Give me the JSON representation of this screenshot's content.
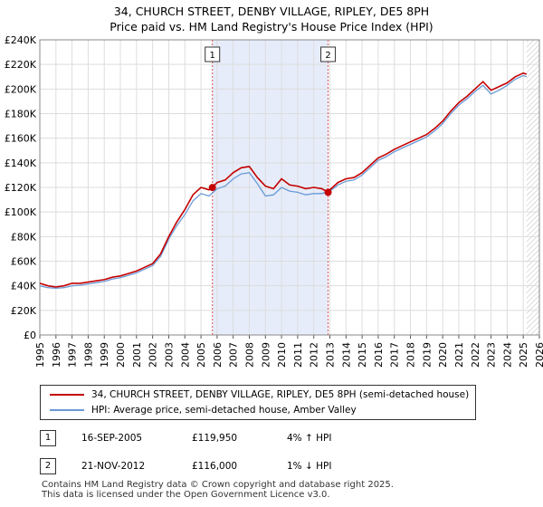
{
  "title": {
    "line1": "34, CHURCH STREET, DENBY VILLAGE, RIPLEY, DE5 8PH",
    "line2": "Price paid vs. HM Land Registry's House Price Index (HPI)"
  },
  "colors": {
    "price_line": "#c40000",
    "hpi_line": "#6a9ad6",
    "shade": "#e6ecf9",
    "grid": "#dddddd",
    "marker_line": "#e05050"
  },
  "chart_data": {
    "type": "line",
    "x_range": [
      1995,
      2026
    ],
    "ylim": [
      0,
      240000
    ],
    "y_ticks": [
      "£0",
      "£20K",
      "£40K",
      "£60K",
      "£80K",
      "£100K",
      "£120K",
      "£140K",
      "£160K",
      "£180K",
      "£200K",
      "£220K",
      "£240K"
    ],
    "x_ticks": [
      "1995",
      "1996",
      "1997",
      "1998",
      "1999",
      "2000",
      "2001",
      "2002",
      "2003",
      "2004",
      "2005",
      "2006",
      "2007",
      "2008",
      "2009",
      "2010",
      "2011",
      "2012",
      "2013",
      "2014",
      "2015",
      "2016",
      "2017",
      "2018",
      "2019",
      "2020",
      "2021",
      "2022",
      "2023",
      "2024",
      "2025",
      "2026"
    ],
    "grid": true,
    "shaded_range": [
      2005.71,
      2012.89
    ],
    "future_hatch_start": 2025.2,
    "series": [
      {
        "name": "34, CHURCH STREET, DENBY VILLAGE, RIPLEY, DE5 8PH (semi-detached house)",
        "x": [
          1995.0,
          1995.5,
          1996.0,
          1996.5,
          1997.0,
          1997.5,
          1998.0,
          1998.5,
          1999.0,
          1999.5,
          2000.0,
          2000.5,
          2001.0,
          2001.5,
          2002.0,
          2002.5,
          2003.0,
          2003.5,
          2004.0,
          2004.5,
          2005.0,
          2005.5,
          2005.71,
          2006.0,
          2006.5,
          2007.0,
          2007.5,
          2008.0,
          2008.5,
          2009.0,
          2009.5,
          2010.0,
          2010.5,
          2011.0,
          2011.5,
          2012.0,
          2012.5,
          2012.89,
          2013.0,
          2013.5,
          2014.0,
          2014.5,
          2015.0,
          2015.5,
          2016.0,
          2016.5,
          2017.0,
          2017.5,
          2018.0,
          2018.5,
          2019.0,
          2019.5,
          2020.0,
          2020.5,
          2021.0,
          2021.5,
          2022.0,
          2022.5,
          2023.0,
          2023.5,
          2024.0,
          2024.5,
          2025.0,
          2025.2
        ],
        "y": [
          42000,
          40000,
          39000,
          40000,
          42000,
          42000,
          43000,
          44000,
          45000,
          47000,
          48000,
          50000,
          52000,
          55000,
          58000,
          66000,
          80000,
          92000,
          102000,
          114000,
          120000,
          118000,
          119950,
          124000,
          126000,
          132000,
          136000,
          137000,
          128000,
          121000,
          119000,
          127000,
          122000,
          121000,
          119000,
          120000,
          119000,
          116000,
          118000,
          124000,
          127000,
          128000,
          132000,
          138000,
          144000,
          147000,
          151000,
          154000,
          157000,
          160000,
          163000,
          168000,
          174000,
          182000,
          189000,
          194000,
          200000,
          206000,
          199000,
          202000,
          205000,
          210000,
          213000,
          212000
        ]
      },
      {
        "name": "HPI: Average price, semi-detached house, Amber Valley",
        "x": [
          1995.0,
          1995.5,
          1996.0,
          1996.5,
          1997.0,
          1997.5,
          1998.0,
          1998.5,
          1999.0,
          1999.5,
          2000.0,
          2000.5,
          2001.0,
          2001.5,
          2002.0,
          2002.5,
          2003.0,
          2003.5,
          2004.0,
          2004.5,
          2005.0,
          2005.5,
          2006.0,
          2006.5,
          2007.0,
          2007.5,
          2008.0,
          2008.5,
          2009.0,
          2009.5,
          2010.0,
          2010.5,
          2011.0,
          2011.5,
          2012.0,
          2012.5,
          2013.0,
          2013.5,
          2014.0,
          2014.5,
          2015.0,
          2015.5,
          2016.0,
          2016.5,
          2017.0,
          2017.5,
          2018.0,
          2018.5,
          2019.0,
          2019.5,
          2020.0,
          2020.5,
          2021.0,
          2021.5,
          2022.0,
          2022.5,
          2023.0,
          2023.5,
          2024.0,
          2024.5,
          2025.0,
          2025.2
        ],
        "y": [
          40000,
          38500,
          38000,
          38500,
          40000,
          40500,
          41500,
          42500,
          43500,
          45500,
          46500,
          48500,
          50500,
          53500,
          56500,
          64000,
          78000,
          89000,
          98000,
          109000,
          115000,
          113000,
          119000,
          121000,
          127000,
          131000,
          132000,
          123000,
          113000,
          114000,
          120000,
          117000,
          116000,
          114000,
          115000,
          115000,
          117000,
          122000,
          125000,
          126000,
          130000,
          136000,
          142000,
          145000,
          149000,
          152000,
          155000,
          158000,
          161000,
          166000,
          172000,
          180000,
          187000,
          192000,
          198000,
          203000,
          196000,
          199000,
          203000,
          208000,
          211000,
          210000
        ]
      }
    ],
    "sales": [
      {
        "label": "1",
        "x": 2005.71,
        "value": 119950
      },
      {
        "label": "2",
        "x": 2012.89,
        "value": 116000
      }
    ]
  },
  "legend": {
    "price_label": "34, CHURCH STREET, DENBY VILLAGE, RIPLEY, DE5 8PH (semi-detached house)",
    "hpi_label": "HPI: Average price, semi-detached house, Amber Valley"
  },
  "annotations": [
    {
      "num": "1",
      "date": "16-SEP-2005",
      "price": "£119,950",
      "hpi": "4% ↑ HPI"
    },
    {
      "num": "2",
      "date": "21-NOV-2012",
      "price": "£116,000",
      "hpi": "1% ↓ HPI"
    }
  ],
  "footer": {
    "line1": "Contains HM Land Registry data © Crown copyright and database right 2025.",
    "line2": "This data is licensed under the Open Government Licence v3.0."
  }
}
